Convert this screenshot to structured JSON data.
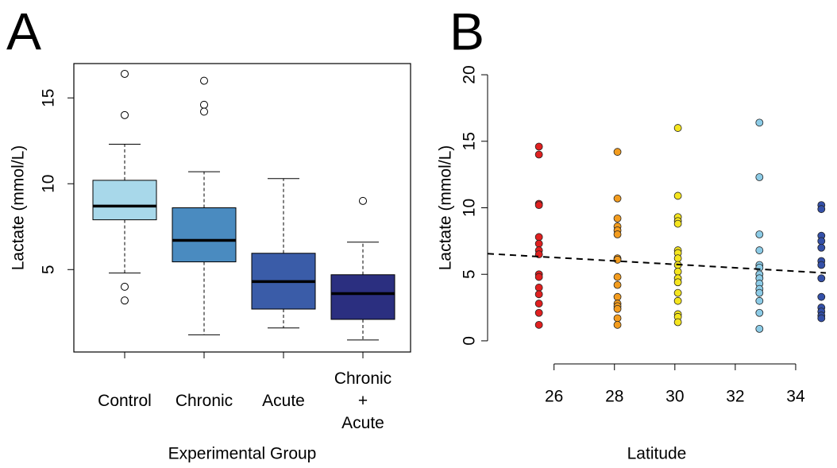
{
  "chart_data": [
    {
      "type": "box",
      "panel_label": "A",
      "ylabel": "Lactate (mmol/L)",
      "xlabel": "Experimental Group",
      "categories": [
        "Control",
        "Chronic",
        "Acute",
        "Chronic\n+\nAcute"
      ],
      "boxes": [
        {
          "color": "#a8d8ea",
          "whislo": 4.8,
          "q1": 7.9,
          "med": 8.7,
          "q3": 10.2,
          "whishi": 12.3,
          "fliers": [
            16.4,
            14.0,
            4.0,
            3.2
          ]
        },
        {
          "color": "#4a8bc0",
          "whislo": 1.2,
          "q1": 5.45,
          "med": 6.7,
          "q3": 8.6,
          "whishi": 10.7,
          "fliers": [
            16.0,
            14.6,
            14.2
          ]
        },
        {
          "color": "#3a5ca8",
          "whislo": 1.6,
          "q1": 2.7,
          "med": 4.3,
          "q3": 5.95,
          "whishi": 10.3,
          "fliers": []
        },
        {
          "color": "#2b2f80",
          "whislo": 0.9,
          "q1": 2.1,
          "med": 3.6,
          "q3": 4.7,
          "whishi": 6.6,
          "fliers": [
            9.0
          ]
        }
      ],
      "ylim": [
        0.2,
        17.0
      ],
      "yticks": [
        5,
        10,
        15
      ]
    },
    {
      "type": "scatter",
      "panel_label": "B",
      "ylabel": "Lactate (mmol/L)",
      "xlabel": "Latitude",
      "series": [
        {
          "color": "#e02020",
          "x": [
            25.5,
            25.5,
            25.5,
            25.5,
            25.5,
            25.5,
            25.5,
            25.5,
            25.5,
            25.5,
            25.5,
            25.5,
            25.5,
            25.5,
            25.5
          ],
          "values": [
            14.6,
            14.0,
            10.3,
            10.2,
            7.8,
            7.3,
            6.8,
            6.5,
            5.0,
            4.8,
            4.0,
            3.5,
            2.8,
            2.1,
            1.2
          ]
        },
        {
          "color": "#f39c1e",
          "x": [
            28.1,
            28.1,
            28.1,
            28.1,
            28.1,
            28.1,
            28.1,
            28.1,
            28.1,
            28.1,
            28.1,
            28.1,
            28.1,
            28.1,
            28.1,
            28.1
          ],
          "values": [
            14.2,
            10.7,
            9.2,
            8.6,
            8.3,
            8.0,
            6.2,
            6.1,
            4.8,
            4.2,
            3.3,
            2.8,
            2.6,
            2.4,
            1.7,
            1.2
          ]
        },
        {
          "color": "#f5e51e",
          "x": [
            30.1,
            30.1,
            30.1,
            30.1,
            30.1,
            30.1,
            30.1,
            30.1,
            30.1,
            30.1,
            30.1,
            30.1,
            30.1,
            30.1,
            30.1,
            30.1,
            30.1
          ],
          "values": [
            16.0,
            10.9,
            9.3,
            9.0,
            8.8,
            6.8,
            6.6,
            6.2,
            5.7,
            5.2,
            4.7,
            4.4,
            3.6,
            3.0,
            2.0,
            1.8,
            1.4
          ]
        },
        {
          "color": "#8ccbe6",
          "x": [
            32.8,
            32.8,
            32.8,
            32.8,
            32.8,
            32.8,
            32.8,
            32.8,
            32.8,
            32.8,
            32.8,
            32.8,
            32.8,
            32.8
          ],
          "values": [
            16.4,
            12.3,
            8.0,
            6.8,
            5.7,
            5.5,
            5.0,
            4.7,
            4.3,
            3.9,
            3.6,
            3.0,
            2.1,
            0.9
          ]
        },
        {
          "color": "#3450a8",
          "x": [
            34.85,
            34.85,
            34.85,
            34.85,
            34.85,
            34.85,
            34.85,
            34.85,
            34.85,
            34.85,
            34.85,
            34.85,
            34.85
          ],
          "values": [
            10.2,
            9.9,
            7.9,
            7.5,
            7.0,
            6.0,
            5.7,
            4.7,
            3.3,
            2.5,
            2.2,
            1.9,
            1.7
          ]
        }
      ],
      "trendline": {
        "x": [
          23.8,
          35.0
        ],
        "values": [
          6.55,
          5.1
        ]
      },
      "xlim": [
        23.8,
        35.0
      ],
      "xticks": [
        26,
        28,
        30,
        32,
        34
      ],
      "ylim": [
        -0.84,
        20.84
      ],
      "yticks": [
        0,
        5,
        10,
        15,
        20
      ]
    }
  ]
}
